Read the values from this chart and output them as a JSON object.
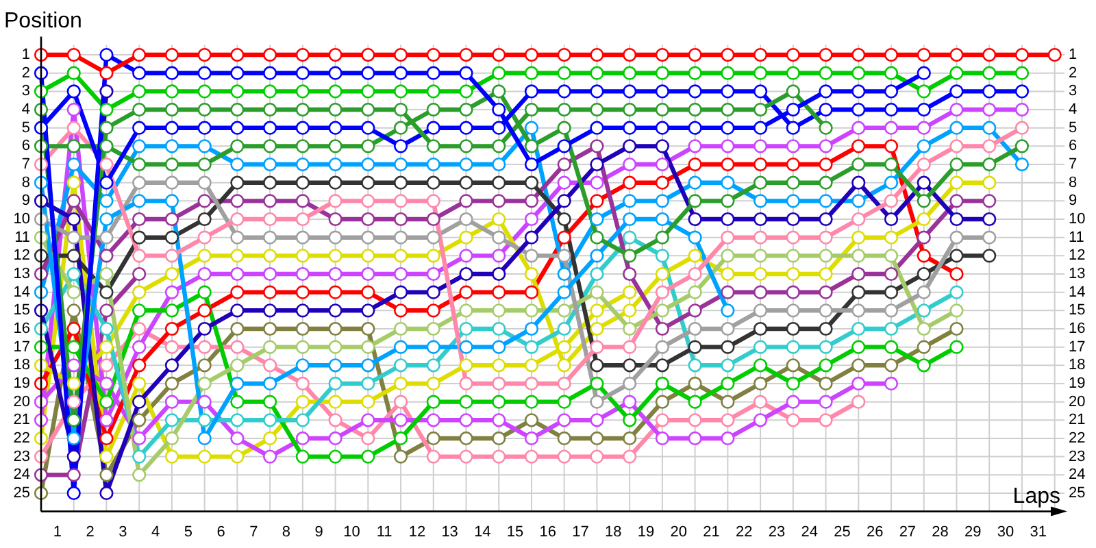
{
  "chart_data": {
    "type": "line",
    "xlabel": "Laps",
    "ylabel": "Position",
    "grid": true,
    "marker": "circle",
    "line_style": "solid",
    "x": [
      0,
      1,
      2,
      3,
      4,
      5,
      6,
      7,
      8,
      9,
      10,
      11,
      12,
      13,
      14,
      15,
      16,
      17,
      18,
      19,
      20,
      21,
      22,
      23,
      24,
      25,
      26,
      27,
      28,
      29,
      30,
      31
    ],
    "xlim": [
      0,
      31.3
    ],
    "xticks": [
      {
        "value": 0,
        "label": null
      },
      {
        "value": 0.5,
        "label": "1"
      },
      {
        "value": 1,
        "label": null
      },
      {
        "value": 1.5,
        "label": "2"
      },
      {
        "value": 2,
        "label": null
      },
      {
        "value": 2.5,
        "label": "3"
      },
      {
        "value": 3,
        "label": null
      },
      {
        "value": 3.5,
        "label": "4"
      },
      {
        "value": 4,
        "label": null
      },
      {
        "value": 4.5,
        "label": "5"
      },
      {
        "value": 5,
        "label": null
      },
      {
        "value": 5.5,
        "label": "6"
      },
      {
        "value": 6,
        "label": null
      },
      {
        "value": 6.5,
        "label": "7"
      },
      {
        "value": 7,
        "label": null
      },
      {
        "value": 7.5,
        "label": "8"
      },
      {
        "value": 8,
        "label": null
      },
      {
        "value": 8.5,
        "label": "9"
      },
      {
        "value": 9,
        "label": null
      },
      {
        "value": 9.5,
        "label": "10"
      },
      {
        "value": 10,
        "label": null
      },
      {
        "value": 10.5,
        "label": "11"
      },
      {
        "value": 11,
        "label": null
      },
      {
        "value": 11.5,
        "label": "12"
      },
      {
        "value": 12,
        "label": null
      },
      {
        "value": 12.5,
        "label": "13"
      },
      {
        "value": 13,
        "label": null
      },
      {
        "value": 13.5,
        "label": "14"
      },
      {
        "value": 14,
        "label": null
      },
      {
        "value": 14.5,
        "label": "15"
      },
      {
        "value": 15,
        "label": null
      },
      {
        "value": 15.5,
        "label": "16"
      },
      {
        "value": 16,
        "label": null
      },
      {
        "value": 16.5,
        "label": "17"
      },
      {
        "value": 17,
        "label": null
      },
      {
        "value": 17.5,
        "label": "18"
      },
      {
        "value": 18,
        "label": null
      },
      {
        "value": 18.5,
        "label": "19"
      },
      {
        "value": 19,
        "label": null
      },
      {
        "value": 19.5,
        "label": "20"
      },
      {
        "value": 20,
        "label": null
      },
      {
        "value": 20.5,
        "label": "21"
      },
      {
        "value": 21,
        "label": null
      },
      {
        "value": 21.5,
        "label": "22"
      },
      {
        "value": 22,
        "label": null
      },
      {
        "value": 22.5,
        "label": "23"
      },
      {
        "value": 23,
        "label": null
      },
      {
        "value": 23.5,
        "label": "24"
      },
      {
        "value": 24,
        "label": null
      },
      {
        "value": 24.5,
        "label": "25"
      },
      {
        "value": 25,
        "label": null
      },
      {
        "value": 25.5,
        "label": "26"
      },
      {
        "value": 26,
        "label": null
      },
      {
        "value": 26.5,
        "label": "27"
      },
      {
        "value": 27,
        "label": null
      },
      {
        "value": 27.5,
        "label": "28"
      },
      {
        "value": 28,
        "label": null
      },
      {
        "value": 28.5,
        "label": "29"
      },
      {
        "value": 29,
        "label": null
      },
      {
        "value": 29.5,
        "label": "30"
      },
      {
        "value": 30,
        "label": null
      },
      {
        "value": 30.5,
        "label": "31"
      },
      {
        "value": 31,
        "label": null
      }
    ],
    "ylim": [
      26,
      0
    ],
    "yticks": [
      1,
      2,
      3,
      4,
      5,
      6,
      7,
      8,
      9,
      10,
      11,
      12,
      13,
      14,
      15,
      16,
      17,
      18,
      19,
      20,
      21,
      22,
      23,
      24,
      25
    ],
    "y2lim": [
      26,
      0
    ],
    "y2ticks": [
      1,
      2,
      3,
      4,
      5,
      6,
      7,
      8,
      9,
      10,
      11,
      12,
      13,
      14,
      15,
      16,
      17,
      18,
      19,
      20,
      21,
      22,
      23,
      24,
      25
    ],
    "series": [
      {
        "color": "#808040",
        "values": [
          25,
          15,
          24,
          21,
          19,
          18,
          16,
          16,
          16,
          16,
          16,
          23,
          22,
          22,
          22,
          21,
          22,
          22,
          22,
          20,
          19,
          20,
          19,
          18,
          19,
          18,
          18,
          17,
          16,
          null,
          null,
          null
        ]
      },
      {
        "color": "#993399",
        "values": [
          24,
          24,
          15,
          13,
          null,
          null,
          null,
          null,
          null,
          null,
          null,
          null,
          null,
          null,
          null,
          null,
          null,
          null,
          null,
          null,
          null,
          null,
          null,
          null,
          null,
          null,
          null,
          null,
          null,
          null,
          null,
          null
        ]
      },
      {
        "color": "#ff88aa",
        "values": [
          23,
          20,
          18,
          16,
          17,
          17,
          17,
          18,
          19,
          21,
          22,
          20,
          23,
          23,
          23,
          23,
          23,
          23,
          23,
          21,
          21,
          21,
          20,
          21,
          21,
          20,
          null,
          null,
          null,
          null,
          null,
          null
        ]
      },
      {
        "color": "#dddd00",
        "values": [
          22,
          8,
          23,
          19,
          23,
          23,
          23,
          22,
          20,
          20,
          20,
          19,
          19,
          18,
          18,
          18,
          17,
          15,
          14,
          null,
          null,
          null,
          null,
          null,
          null,
          null,
          null,
          null,
          null,
          null,
          null,
          null
        ]
      },
      {
        "color": "#cc44ff",
        "values": [
          21,
          4,
          21,
          17,
          14,
          13,
          13,
          13,
          13,
          13,
          13,
          13,
          13,
          12,
          12,
          10,
          8,
          8,
          7,
          7,
          6,
          6,
          6,
          6,
          6,
          5,
          5,
          5,
          4,
          4,
          4,
          null
        ]
      },
      {
        "color": "#cc44ff",
        "values": [
          20,
          18,
          19,
          22,
          20,
          20,
          22,
          23,
          22,
          22,
          21,
          21,
          21,
          21,
          21,
          22,
          21,
          21,
          20,
          22,
          22,
          22,
          21,
          20,
          20,
          19,
          19,
          null,
          null,
          null,
          null,
          null
        ]
      },
      {
        "color": "#ff0000",
        "values": [
          19,
          16,
          22,
          18,
          16,
          15,
          14,
          14,
          14,
          14,
          14,
          15,
          15,
          14,
          14,
          14,
          11,
          9,
          8,
          8,
          7,
          7,
          7,
          7,
          7,
          6,
          6,
          12,
          13,
          null,
          null,
          null
        ]
      },
      {
        "color": "#dddd00",
        "values": [
          18,
          19,
          17,
          14,
          13,
          12,
          12,
          12,
          12,
          12,
          12,
          12,
          12,
          11,
          10,
          13,
          18,
          16,
          15,
          13,
          12,
          13,
          13,
          13,
          13,
          11,
          11,
          10,
          8,
          8,
          null,
          null
        ]
      },
      {
        "color": "#00cc00",
        "values": [
          17,
          17,
          20,
          15,
          15,
          14,
          20,
          20,
          23,
          23,
          23,
          22,
          20,
          20,
          20,
          20,
          20,
          19,
          21,
          19,
          20,
          19,
          18,
          19,
          18,
          17,
          17,
          18,
          17,
          null,
          null,
          null
        ]
      },
      {
        "color": "#33cccc",
        "values": [
          16,
          13,
          16,
          23,
          21,
          21,
          21,
          21,
          21,
          19,
          19,
          18,
          18,
          16,
          16,
          17,
          16,
          13,
          11,
          12,
          18,
          18,
          17,
          17,
          17,
          16,
          16,
          15,
          14,
          null,
          null,
          null
        ]
      },
      {
        "color": "#2000b8",
        "values": [
          15,
          23,
          3,
          null,
          null,
          null,
          null,
          null,
          null,
          null,
          null,
          null,
          null,
          null,
          null,
          null,
          null,
          null,
          null,
          null,
          null,
          null,
          null,
          null,
          null,
          null,
          null,
          null,
          null,
          null,
          null,
          null
        ]
      },
      {
        "color": "#00a2ff",
        "values": [
          14,
          7,
          9,
          6,
          6,
          6,
          7,
          7,
          7,
          7,
          7,
          7,
          7,
          7,
          7,
          5,
          13,
          10,
          9,
          9,
          8,
          8,
          9,
          9,
          9,
          9,
          8,
          6,
          5,
          5,
          7,
          null
        ]
      },
      {
        "color": "#993399",
        "values": [
          13,
          9,
          12,
          10,
          10,
          9,
          9,
          9,
          9,
          10,
          10,
          10,
          10,
          9,
          9,
          9,
          7,
          6,
          13,
          16,
          15,
          14,
          14,
          14,
          14,
          13,
          13,
          11,
          9,
          9,
          null,
          null
        ]
      },
      {
        "color": "#333333",
        "values": [
          12,
          12,
          14,
          11,
          11,
          10,
          8,
          8,
          8,
          8,
          8,
          8,
          8,
          8,
          8,
          8,
          10,
          18,
          18,
          18,
          17,
          17,
          16,
          16,
          16,
          14,
          14,
          13,
          12,
          12,
          null,
          null
        ]
      },
      {
        "color": "#a6cc6a",
        "values": [
          11,
          14,
          13,
          24,
          22,
          19,
          18,
          17,
          17,
          17,
          17,
          16,
          16,
          15,
          15,
          15,
          15,
          14,
          16,
          15,
          14,
          12,
          12,
          12,
          12,
          12,
          12,
          16,
          15,
          null,
          null,
          null
        ]
      },
      {
        "color": "#a0a0a0",
        "values": [
          10,
          11,
          11,
          8,
          8,
          8,
          11,
          11,
          11,
          11,
          11,
          11,
          11,
          10,
          11,
          12,
          12,
          20,
          19,
          17,
          16,
          16,
          15,
          15,
          15,
          15,
          15,
          14,
          11,
          11,
          null,
          null
        ]
      },
      {
        "color": "#2000b8",
        "values": [
          9,
          10,
          25,
          20,
          18,
          16,
          15,
          15,
          15,
          15,
          15,
          14,
          14,
          13,
          13,
          11,
          9,
          7,
          6,
          6,
          10,
          10,
          10,
          10,
          10,
          8,
          10,
          8,
          10,
          10,
          null,
          null
        ]
      },
      {
        "color": "#00a2ff",
        "values": [
          8,
          22,
          10,
          9,
          9,
          22,
          19,
          19,
          18,
          18,
          18,
          17,
          17,
          17,
          17,
          16,
          14,
          12,
          10,
          10,
          11,
          15,
          null,
          null,
          null,
          null,
          null,
          null,
          null,
          null,
          null,
          null
        ]
      },
      {
        "color": "#ff88aa",
        "values": [
          7,
          5,
          7,
          12,
          12,
          11,
          10,
          10,
          10,
          9,
          9,
          9,
          9,
          19,
          19,
          19,
          19,
          17,
          17,
          14,
          13,
          11,
          11,
          11,
          11,
          10,
          9,
          7,
          6,
          6,
          5,
          null
        ]
      },
      {
        "color": "#2a9d2a",
        "values": [
          6,
          6,
          6,
          7,
          7,
          7,
          6,
          6,
          6,
          6,
          6,
          5,
          4,
          4,
          3,
          6,
          5,
          11,
          12,
          11,
          9,
          9,
          8,
          8,
          8,
          7,
          7,
          9,
          7,
          7,
          6,
          null
        ]
      },
      {
        "color": "#0000ff",
        "values": [
          5,
          3,
          8,
          5,
          5,
          5,
          5,
          5,
          5,
          5,
          5,
          6,
          5,
          5,
          5,
          3,
          3,
          3,
          3,
          3,
          3,
          3,
          3,
          5,
          4,
          4,
          4,
          4,
          3,
          3,
          3,
          null
        ]
      },
      {
        "color": "#2a9d2a",
        "values": [
          4,
          21,
          5,
          4,
          4,
          4,
          4,
          4,
          4,
          4,
          4,
          4,
          6,
          6,
          6,
          4,
          4,
          4,
          4,
          4,
          4,
          4,
          4,
          3,
          5,
          null,
          null,
          null,
          null,
          null,
          null,
          null
        ]
      },
      {
        "color": "#00cc00",
        "values": [
          3,
          2,
          4,
          3,
          3,
          3,
          3,
          3,
          3,
          3,
          3,
          3,
          3,
          3,
          2,
          2,
          2,
          2,
          2,
          2,
          2,
          2,
          2,
          2,
          2,
          2,
          2,
          3,
          2,
          2,
          2,
          null
        ]
      },
      {
        "color": "#0000ff",
        "values": [
          2,
          25,
          1,
          2,
          2,
          2,
          2,
          2,
          2,
          2,
          2,
          2,
          2,
          2,
          4,
          7,
          6,
          5,
          5,
          5,
          5,
          5,
          5,
          4,
          3,
          3,
          3,
          2,
          null,
          null,
          null,
          null
        ]
      },
      {
        "color": "#ff0000",
        "values": [
          1,
          1,
          2,
          1,
          1,
          1,
          1,
          1,
          1,
          1,
          1,
          1,
          1,
          1,
          1,
          1,
          1,
          1,
          1,
          1,
          1,
          1,
          1,
          1,
          1,
          1,
          1,
          1,
          1,
          1,
          1,
          1
        ]
      }
    ]
  }
}
